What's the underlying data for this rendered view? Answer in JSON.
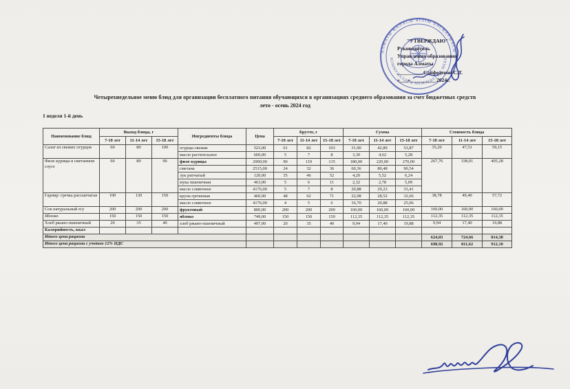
{
  "page": {
    "title_line1": "Четырехнедельное меню блюд для организации бесплатного питания обучающихся в организациях среднего образования за счет бюджетных средств",
    "title_line2": "лето - осень 2024 год",
    "week_label": "1 неделя 1-й день"
  },
  "approval": {
    "line1": "\"УТВЕРЖДАЮ\"",
    "line2": "Руководитель",
    "line3": "Управления образования",
    "line4": "города Алматы",
    "signer_blank": "__________",
    "signer": "Сайфеденов С.Т.",
    "date_blank": "«___»__________",
    "year": "2024г.",
    "stamp_color": "#2c41a8",
    "stamp_text_top": "АЛМАТЫ ҚАЛАСЫ БІЛІМ БАСҚАРМАСЫ",
    "stamp_text_bottom": "КОММУНАЛДЫҚ МЕМЛЕКЕТТІК МЕКЕМЕСІ"
  },
  "table": {
    "header": {
      "dish": "Наименование блюд",
      "out_group": "Выход блюда, г",
      "ingredients": "Ингредиенты блюда",
      "price": "Цена",
      "brutto_group": "Брутто, г",
      "sum_group": "Сумма",
      "cost_group": "Стоимость блюда",
      "ages": [
        "7-10 лет",
        "11-14 лет",
        "15-18 лет"
      ]
    },
    "groups": [
      {
        "dish": "Салат из свежих огурцов",
        "out": [
          "60",
          "80",
          "100"
        ],
        "cost": [
          "35,20",
          "47,51",
          "59,15"
        ],
        "rows": [
          {
            "ing": "огурцы свежие",
            "price": "523,00",
            "brutto": [
              "61",
              "82",
              "103"
            ],
            "sum": [
              "31,90",
              "42,89",
              "53,87"
            ]
          },
          {
            "ing": "масло растительное",
            "price": "660,00",
            "brutto": [
              "5",
              "7",
              "8"
            ],
            "sum": [
              "3,30",
              "4,62",
              "5,28"
            ]
          }
        ]
      },
      {
        "dish": "Филе курицы в сметанном соусе",
        "out": [
          "60",
          "80",
          "90"
        ],
        "cost": [
          "267,76",
          "338,01",
          "405,28"
        ],
        "rows": [
          {
            "ing": "филе курицы",
            "bold": true,
            "price": "2000,00",
            "brutto": [
              "90",
              "110",
              "135"
            ],
            "sum": [
              "180,00",
              "220,00",
              "270,00"
            ]
          },
          {
            "ing": "сметана",
            "price": "2515,00",
            "brutto": [
              "24",
              "32",
              "36"
            ],
            "sum": [
              "60,36",
              "80,48",
              "90,54"
            ]
          },
          {
            "ing": "лук репчатый",
            "price": "120,00",
            "brutto": [
              "35",
              "46",
              "52"
            ],
            "sum": [
              "4,20",
              "5,52",
              "6,24"
            ]
          },
          {
            "ing": "мука пшеничная",
            "price": "463,00",
            "brutto": [
              "5",
              "6",
              "11"
            ],
            "sum": [
              "2,32",
              "2,78",
              "5,09"
            ]
          },
          {
            "ing": "масло сливочное",
            "price": "4176,00",
            "brutto": [
              "5",
              "7",
              "8"
            ],
            "sum": [
              "20,88",
              "29,23",
              "33,41"
            ]
          }
        ]
      },
      {
        "dish": "Гарнир: гречка рассыпчатая",
        "out": [
          "100",
          "130",
          "150"
        ],
        "cost": [
          "38,78",
          "49,40",
          "57,72"
        ],
        "rows": [
          {
            "ing": "крупа гречневая",
            "price": "460,00",
            "brutto": [
              "48",
              "62",
              "71"
            ],
            "sum": [
              "22,08",
              "28,52",
              "32,66"
            ]
          },
          {
            "ing": "масло сливочное",
            "price": "4176,00",
            "brutto": [
              "4",
              "5",
              "6"
            ],
            "sum": [
              "16,70",
              "20,88",
              "25,06"
            ]
          }
        ]
      },
      {
        "dish": "Сок натуральный п/у",
        "out": [
          "200",
          "200",
          "200"
        ],
        "cost": [
          "160,00",
          "160,00",
          "160,00"
        ],
        "rows": [
          {
            "ing": "фруктовый",
            "bold": true,
            "price": "800,00",
            "brutto": [
              "200",
              "200",
              "200"
            ],
            "sum": [
              "160,00",
              "160,00",
              "160,00"
            ]
          }
        ]
      },
      {
        "dish": "Яблоко",
        "out": [
          "150",
          "150",
          "150"
        ],
        "cost": [
          "112,35",
          "112,35",
          "112,35"
        ],
        "rows": [
          {
            "ing": "яблоко",
            "bold": true,
            "price": "749,00",
            "brutto": [
              "150",
              "150",
              "150"
            ],
            "sum": [
              "112,35",
              "112,35",
              "112,35"
            ]
          }
        ]
      },
      {
        "dish": "Хлеб ржано-пшеничный",
        "out": [
          "20",
          "35",
          "40"
        ],
        "cost": [
          "9,94",
          "17,40",
          "19,88"
        ],
        "rows": [
          {
            "ing": "хлеб ржано-пшеничный",
            "price": "497,00",
            "brutto": [
              "20",
              "35",
              "40"
            ],
            "sum": [
              "9,94",
              "17,40",
              "19,88"
            ]
          }
        ]
      }
    ],
    "kcal_label": "Калорийность, ккал",
    "totals": [
      {
        "label": "Итого цена рациона",
        "values": [
          "624,03",
          "724,66",
          "814,38"
        ]
      },
      {
        "label": "Итого цена рациона с учетом 12% НДС",
        "values": [
          "698,92",
          "811,62",
          "912,10"
        ]
      }
    ]
  }
}
